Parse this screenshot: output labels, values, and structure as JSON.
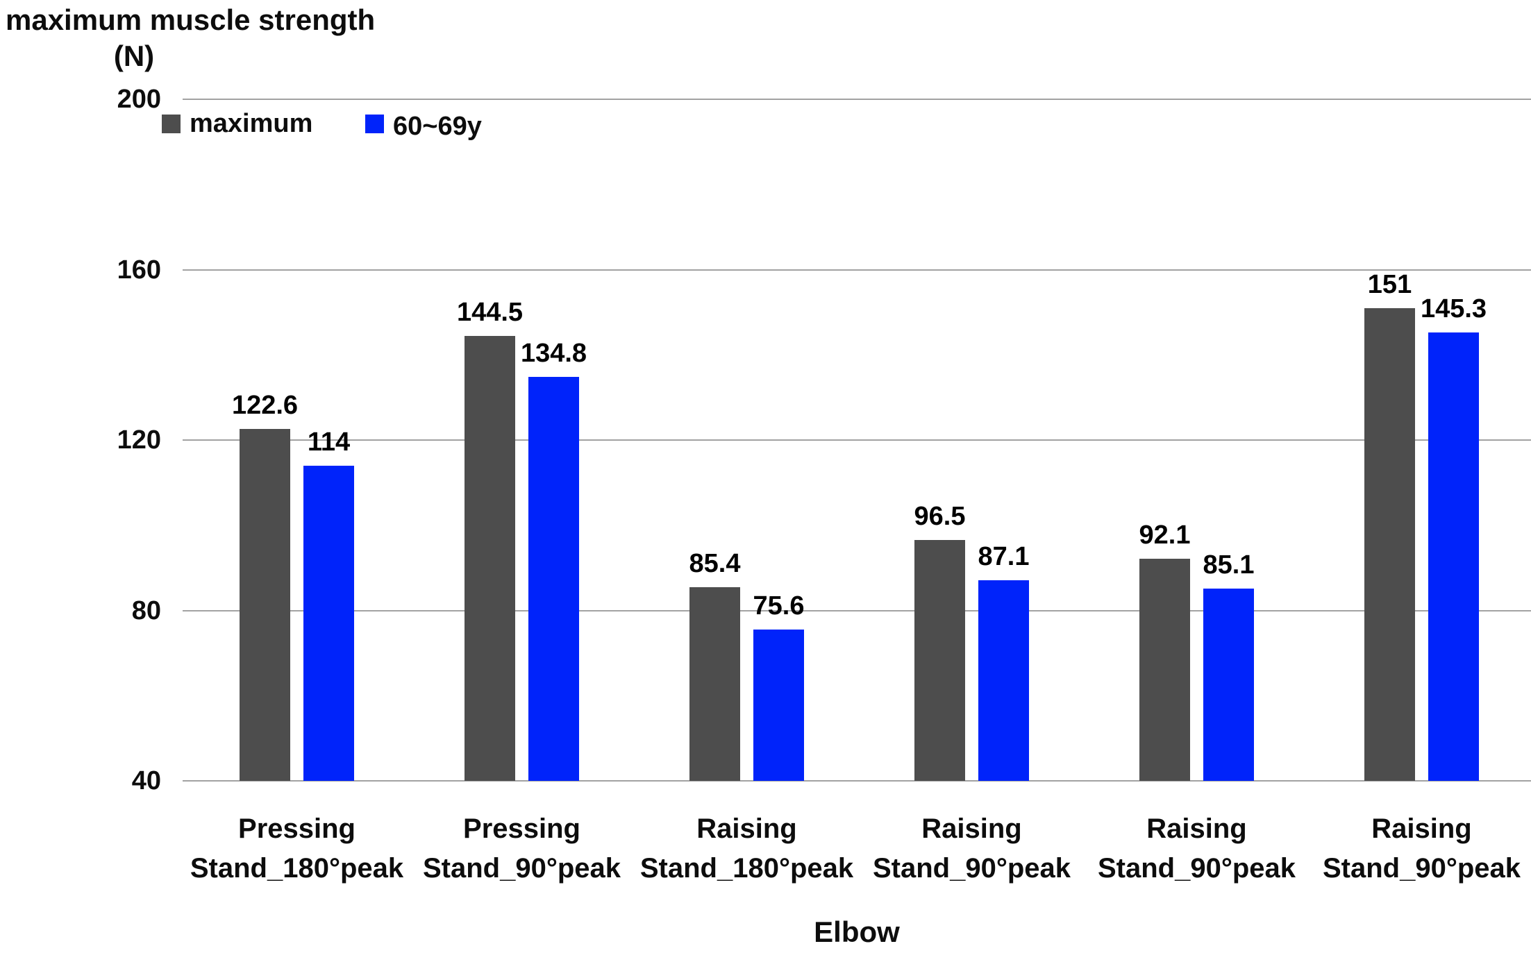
{
  "chart": {
    "title": "maximum muscle strength",
    "unit": "(N)",
    "xlabel": "Elbow"
  },
  "colors": {
    "series_maximum": "#4d4d4d",
    "series_60_69y": "#0023fa",
    "gridline": "#a2a2a2",
    "text": "#0d0d0d"
  },
  "chart_data": {
    "type": "bar",
    "title": "maximum muscle strength",
    "unit": "(N)",
    "xlabel": "Elbow",
    "ylabel": "maximum muscle strength (N)",
    "ylim": [
      40,
      200
    ],
    "yticks": [
      40,
      80,
      120,
      160,
      200
    ],
    "grid": true,
    "legend_position": "top-left",
    "bar_labels": true,
    "categories": [
      "Pressing\nStand_180°peak",
      "Pressing\nStand_90°peak",
      "Raising\nStand_180°peak",
      "Raising\nStand_90°peak",
      "Raising\nStand_90°peak",
      "Raising\nStand_90°peak"
    ],
    "series": [
      {
        "name": "maximum",
        "color": "#4d4d4d",
        "values": [
          122.6,
          144.5,
          85.4,
          96.5,
          92.1,
          151
        ],
        "value_labels": [
          "122.6",
          "144.5",
          "85.4",
          "96.5",
          "92.1",
          "151"
        ]
      },
      {
        "name": "60~69y",
        "color": "#0023fa",
        "values": [
          114,
          134.8,
          75.6,
          87.1,
          85.1,
          145.3
        ],
        "value_labels": [
          "114",
          "134.8",
          "75.6",
          "87.1",
          "85.1",
          "145.3"
        ]
      }
    ]
  }
}
